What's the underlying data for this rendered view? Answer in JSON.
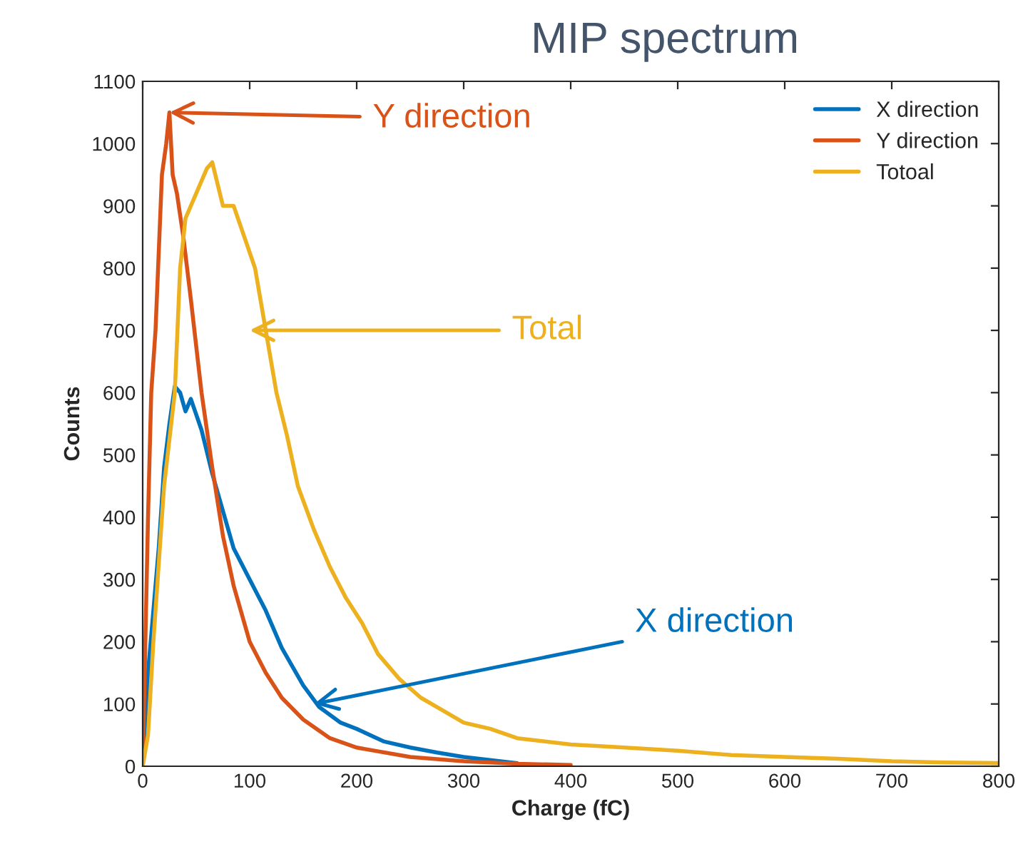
{
  "chart_data": {
    "type": "line",
    "title": "MIP spectrum",
    "xlabel": "Charge (fC)",
    "ylabel": "Counts",
    "xlim": [
      0,
      800
    ],
    "ylim": [
      0,
      1100
    ],
    "xticks": [
      0,
      100,
      200,
      300,
      400,
      500,
      600,
      700,
      800
    ],
    "yticks": [
      0,
      100,
      200,
      300,
      400,
      500,
      600,
      700,
      800,
      900,
      1000,
      1100
    ],
    "grid": false,
    "legend": "top right",
    "marker": "none",
    "line_style": "solid",
    "series": [
      {
        "name": "X direction",
        "color": "#0072bd",
        "x": [
          0,
          5,
          10,
          15,
          20,
          25,
          30,
          35,
          40,
          45,
          55,
          65,
          75,
          85,
          100,
          115,
          130,
          150,
          165,
          185,
          200,
          225,
          250,
          275,
          300,
          350
        ],
        "values": [
          0,
          150,
          250,
          350,
          480,
          550,
          610,
          600,
          570,
          590,
          540,
          470,
          410,
          350,
          300,
          250,
          190,
          130,
          95,
          70,
          60,
          40,
          30,
          22,
          15,
          5
        ]
      },
      {
        "name": "Y direction",
        "color": "#d95319",
        "x": [
          0,
          5,
          8,
          12,
          18,
          22,
          25,
          28,
          32,
          38,
          45,
          55,
          65,
          75,
          85,
          100,
          115,
          130,
          150,
          175,
          200,
          250,
          300,
          350,
          400
        ],
        "values": [
          0,
          400,
          600,
          700,
          950,
          1000,
          1050,
          950,
          920,
          850,
          750,
          600,
          480,
          370,
          290,
          200,
          150,
          110,
          75,
          45,
          30,
          15,
          8,
          4,
          2
        ]
      },
      {
        "name": "Totoal",
        "color": "#edb120",
        "x": [
          0,
          5,
          10,
          20,
          30,
          35,
          40,
          50,
          60,
          65,
          75,
          85,
          95,
          105,
          115,
          125,
          135,
          145,
          160,
          175,
          190,
          205,
          220,
          240,
          260,
          280,
          300,
          325,
          350,
          400,
          450,
          500,
          550,
          600,
          650,
          700,
          750,
          800
        ],
        "values": [
          0,
          50,
          200,
          450,
          600,
          800,
          880,
          920,
          960,
          970,
          900,
          900,
          850,
          800,
          700,
          600,
          530,
          450,
          380,
          320,
          270,
          230,
          180,
          140,
          110,
          90,
          70,
          60,
          45,
          35,
          30,
          25,
          18,
          15,
          12,
          8,
          6,
          5
        ]
      }
    ],
    "annotations": [
      {
        "text": "Y direction",
        "x": 25,
        "y": 1050
      },
      {
        "text": "Total",
        "x": 100,
        "y": 700
      },
      {
        "text": "X direction",
        "x": 160,
        "y": 100
      }
    ]
  }
}
